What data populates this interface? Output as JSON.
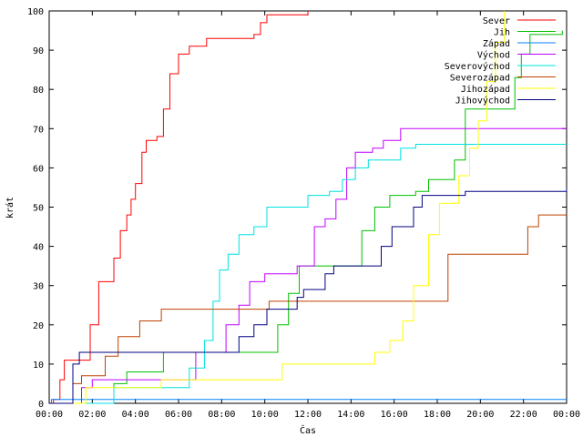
{
  "chart_data": {
    "type": "line",
    "title": "",
    "xlabel": "Čas",
    "ylabel": "krát",
    "xlim": [
      0,
      24
    ],
    "ylim": [
      0,
      100
    ],
    "grid": false,
    "legend_position": "top-right",
    "x_ticks": [
      "00:00",
      "02:00",
      "04:00",
      "06:00",
      "08:00",
      "10:00",
      "12:00",
      "14:00",
      "16:00",
      "18:00",
      "20:00",
      "22:00",
      "00:00"
    ],
    "y_ticks": [
      "0",
      "10",
      "20",
      "30",
      "40",
      "50",
      "60",
      "70",
      "80",
      "90",
      "100"
    ],
    "series": [
      {
        "name": "Sever",
        "color": "#ff0000",
        "points": [
          [
            0,
            0
          ],
          [
            0.2,
            1
          ],
          [
            0.5,
            6
          ],
          [
            0.7,
            11
          ],
          [
            1.5,
            11
          ],
          [
            1.9,
            20
          ],
          [
            2.3,
            31
          ],
          [
            2.8,
            31
          ],
          [
            3.0,
            37
          ],
          [
            3.3,
            44
          ],
          [
            3.6,
            48
          ],
          [
            3.8,
            52
          ],
          [
            4.0,
            56
          ],
          [
            4.3,
            64
          ],
          [
            4.5,
            67
          ],
          [
            5.0,
            68
          ],
          [
            5.3,
            75
          ],
          [
            5.6,
            84
          ],
          [
            6.0,
            89
          ],
          [
            6.5,
            91
          ],
          [
            7.3,
            93
          ],
          [
            9.5,
            94
          ],
          [
            9.8,
            97
          ],
          [
            10.1,
            99
          ],
          [
            12.0,
            100
          ]
        ]
      },
      {
        "name": "Jih",
        "color": "#00c000",
        "points": [
          [
            0,
            0
          ],
          [
            2.8,
            0
          ],
          [
            3.0,
            5
          ],
          [
            3.6,
            8
          ],
          [
            4.8,
            8
          ],
          [
            5.3,
            13
          ],
          [
            10.1,
            13
          ],
          [
            10.6,
            20
          ],
          [
            11.1,
            28
          ],
          [
            11.6,
            35
          ],
          [
            13.3,
            35
          ],
          [
            14.5,
            44
          ],
          [
            15.1,
            50
          ],
          [
            15.8,
            53
          ],
          [
            17.0,
            54
          ],
          [
            17.6,
            57
          ],
          [
            18.8,
            62
          ],
          [
            19.3,
            75
          ],
          [
            20.5,
            75
          ],
          [
            21.6,
            83
          ],
          [
            21.9,
            89
          ],
          [
            22.3,
            94
          ],
          [
            23.8,
            95
          ]
        ]
      },
      {
        "name": "Západ",
        "color": "#0080ff",
        "points": [
          [
            0,
            0
          ],
          [
            0.1,
            1
          ],
          [
            24,
            1
          ]
        ]
      },
      {
        "name": "Východ",
        "color": "#c000ff",
        "points": [
          [
            0,
            0
          ],
          [
            1.0,
            0
          ],
          [
            1.5,
            4
          ],
          [
            2.0,
            6
          ],
          [
            6.5,
            6
          ],
          [
            6.8,
            13
          ],
          [
            7.8,
            13
          ],
          [
            8.2,
            20
          ],
          [
            8.8,
            25
          ],
          [
            9.3,
            31
          ],
          [
            10.0,
            33
          ],
          [
            11.5,
            35
          ],
          [
            12.3,
            45
          ],
          [
            12.8,
            47
          ],
          [
            13.3,
            52
          ],
          [
            13.8,
            60
          ],
          [
            14.2,
            64
          ],
          [
            15.0,
            65
          ],
          [
            15.5,
            67
          ],
          [
            15.9,
            67
          ],
          [
            16.3,
            70
          ],
          [
            24,
            70
          ]
        ]
      },
      {
        "name": "Severovýchod",
        "color": "#00e0e0",
        "points": [
          [
            0,
            0
          ],
          [
            2.5,
            0
          ],
          [
            3.0,
            4
          ],
          [
            6.0,
            4
          ],
          [
            6.5,
            9
          ],
          [
            7.2,
            16
          ],
          [
            7.6,
            26
          ],
          [
            7.9,
            34
          ],
          [
            8.3,
            38
          ],
          [
            8.8,
            43
          ],
          [
            9.5,
            45
          ],
          [
            10.1,
            50
          ],
          [
            11.3,
            50
          ],
          [
            12.0,
            53
          ],
          [
            13.0,
            54
          ],
          [
            13.6,
            57
          ],
          [
            14.2,
            60
          ],
          [
            14.8,
            62
          ],
          [
            15.3,
            62
          ],
          [
            16.3,
            65
          ],
          [
            17.0,
            66
          ],
          [
            24,
            66
          ]
        ]
      },
      {
        "name": "Severozápad",
        "color": "#c04000",
        "points": [
          [
            0,
            0
          ],
          [
            0.8,
            0
          ],
          [
            1.1,
            5
          ],
          [
            1.5,
            7
          ],
          [
            2.3,
            7
          ],
          [
            2.6,
            12
          ],
          [
            3.2,
            17
          ],
          [
            3.9,
            17
          ],
          [
            4.2,
            21
          ],
          [
            4.8,
            21
          ],
          [
            5.2,
            24
          ],
          [
            10.0,
            24
          ],
          [
            10.2,
            26
          ],
          [
            18.0,
            26
          ],
          [
            18.5,
            38
          ],
          [
            21.6,
            38
          ],
          [
            22.2,
            45
          ],
          [
            22.7,
            48
          ],
          [
            24,
            48
          ]
        ]
      },
      {
        "name": "Jihozápad",
        "color": "#ffff00",
        "points": [
          [
            0,
            0
          ],
          [
            1.5,
            0
          ],
          [
            1.7,
            4
          ],
          [
            5.0,
            4
          ],
          [
            5.2,
            6
          ],
          [
            10.3,
            6
          ],
          [
            10.8,
            10
          ],
          [
            14.5,
            10
          ],
          [
            15.1,
            13
          ],
          [
            15.8,
            16
          ],
          [
            16.4,
            21
          ],
          [
            16.9,
            30
          ],
          [
            17.6,
            43
          ],
          [
            18.1,
            51
          ],
          [
            18.6,
            51
          ],
          [
            19.0,
            58
          ],
          [
            19.5,
            65
          ],
          [
            19.9,
            72
          ],
          [
            20.3,
            82
          ],
          [
            20.7,
            92
          ],
          [
            21.1,
            100
          ]
        ]
      },
      {
        "name": "Jihovýchod",
        "color": "#000080",
        "points": [
          [
            0,
            0
          ],
          [
            0.9,
            0
          ],
          [
            1.1,
            10
          ],
          [
            1.4,
            13
          ],
          [
            8.5,
            13
          ],
          [
            8.8,
            17
          ],
          [
            9.5,
            20
          ],
          [
            10.1,
            24
          ],
          [
            11.1,
            24
          ],
          [
            11.5,
            27
          ],
          [
            11.8,
            29
          ],
          [
            12.4,
            29
          ],
          [
            12.8,
            33
          ],
          [
            13.2,
            35
          ],
          [
            15.0,
            35
          ],
          [
            15.4,
            40
          ],
          [
            15.9,
            45
          ],
          [
            16.5,
            45
          ],
          [
            16.9,
            50
          ],
          [
            17.3,
            53
          ],
          [
            18.9,
            53
          ],
          [
            19.3,
            54
          ],
          [
            23.8,
            54
          ],
          [
            24,
            55
          ]
        ]
      }
    ]
  }
}
